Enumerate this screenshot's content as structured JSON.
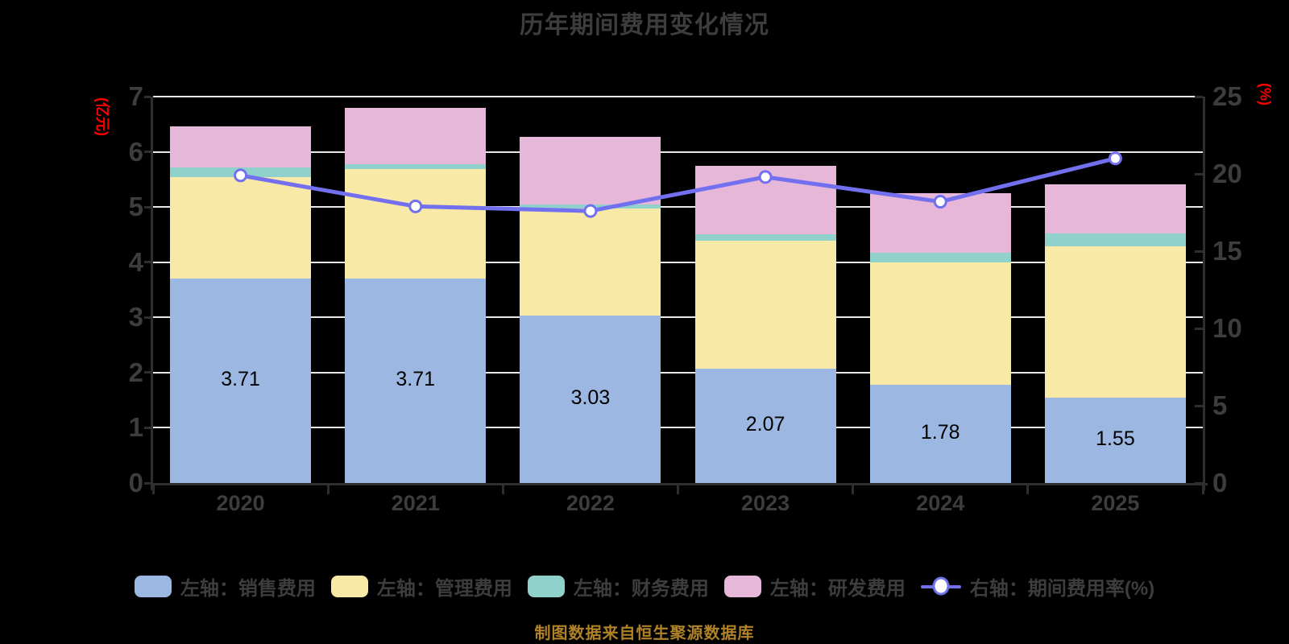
{
  "title": "历年期间费用变化情况",
  "caption": "制图数据来自恒生聚源数据库",
  "colors": {
    "background": "#000000",
    "title_text": "#3D3D3D",
    "axis_text": "#3D3D3D",
    "axis_line": "#2E2E2E",
    "gridline": "#EAEAEA",
    "axis_name_red": "#FF0000",
    "caption_gold": "#B08228",
    "sales": "#9CB8E2",
    "admin": "#F9E9A7",
    "finance": "#90D1CB",
    "rd": "#E6B7D9",
    "line": "#7370F0",
    "marker_fill": "#FFFFFF",
    "bar_label": "#000000"
  },
  "left_axis": {
    "name": "(亿元)",
    "min": 0,
    "max": 7,
    "ticks": [
      0,
      1,
      2,
      3,
      4,
      5,
      6,
      7
    ]
  },
  "right_axis": {
    "name": "(%)",
    "min": 0,
    "max": 25,
    "ticks": [
      0,
      5,
      10,
      15,
      20,
      25
    ]
  },
  "chart_data": {
    "type": "stacked-bar+line",
    "categories": [
      "2020",
      "2021",
      "2022",
      "2023",
      "2024",
      "2025"
    ],
    "ylim_left": [
      0,
      7
    ],
    "ylim_right": [
      0,
      25
    ],
    "grid": true,
    "legend_position": "bottom",
    "series": [
      {
        "key": "sales",
        "name": "左轴：销售费用",
        "type": "bar",
        "axis": "left",
        "color_key": "sales",
        "labels_shown": true,
        "values": [
          3.71,
          3.71,
          3.03,
          2.07,
          1.78,
          1.55
        ]
      },
      {
        "key": "admin",
        "name": "左轴：管理费用",
        "type": "bar",
        "axis": "left",
        "color_key": "admin",
        "labels_shown": false,
        "values": [
          1.83,
          1.98,
          1.94,
          2.32,
          2.21,
          2.74
        ]
      },
      {
        "key": "finance",
        "name": "左轴：财务费用",
        "type": "bar",
        "axis": "left",
        "color_key": "finance",
        "labels_shown": false,
        "values": [
          0.17,
          0.09,
          0.08,
          0.11,
          0.18,
          0.23
        ]
      },
      {
        "key": "rd",
        "name": "左轴：研发费用",
        "type": "bar",
        "axis": "left",
        "color_key": "rd",
        "labels_shown": false,
        "values": [
          0.75,
          1.02,
          1.22,
          1.24,
          1.08,
          0.89
        ]
      },
      {
        "key": "ratio",
        "name": "右轴：期间费用率(%)",
        "type": "line",
        "axis": "right",
        "color_key": "line",
        "values": [
          19.9,
          17.9,
          17.6,
          19.8,
          18.2,
          21.0
        ]
      }
    ],
    "bar_value_labels": [
      "3.71",
      "3.71",
      "3.03",
      "2.07",
      "1.78",
      "1.55"
    ]
  }
}
